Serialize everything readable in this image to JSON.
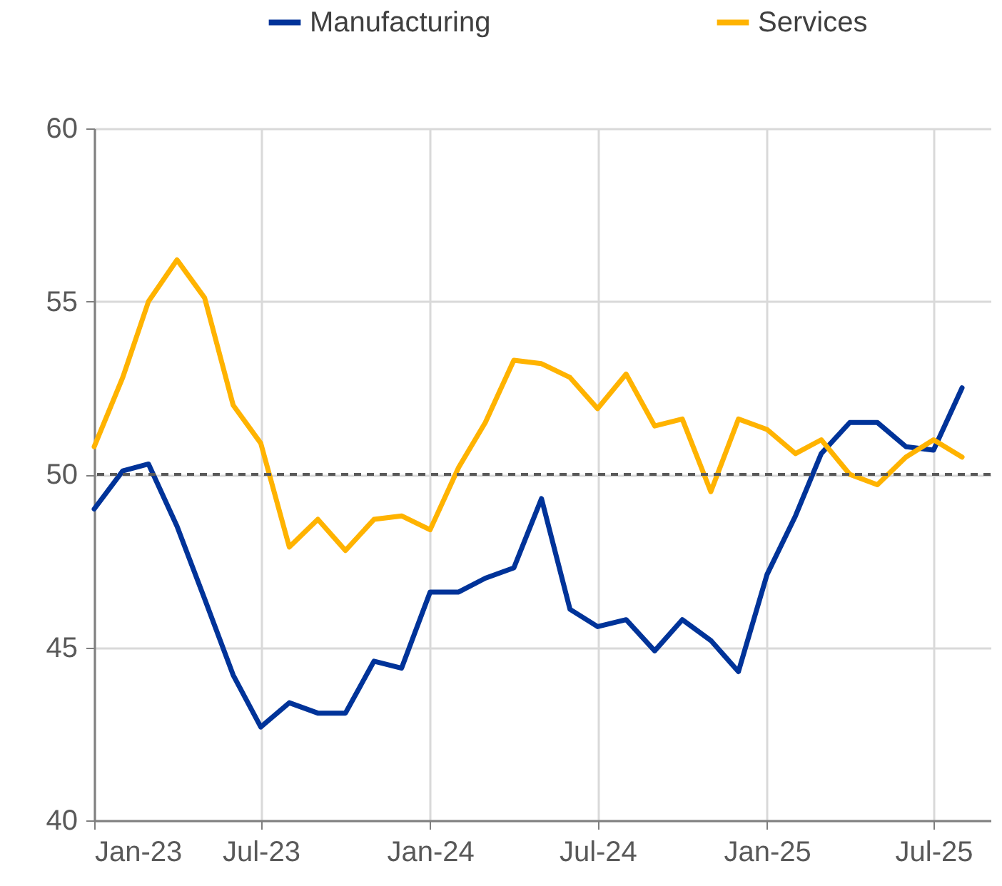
{
  "chart_data": {
    "type": "line",
    "x": [
      "2023-01",
      "2023-02",
      "2023-03",
      "2023-04",
      "2023-05",
      "2023-06",
      "2023-07",
      "2023-08",
      "2023-09",
      "2023-10",
      "2023-11",
      "2023-12",
      "2024-01",
      "2024-02",
      "2024-03",
      "2024-04",
      "2024-05",
      "2024-06",
      "2024-07",
      "2024-08",
      "2024-09",
      "2024-10",
      "2024-11",
      "2024-12",
      "2025-01",
      "2025-02",
      "2025-03",
      "2025-04",
      "2025-05",
      "2025-06",
      "2025-07",
      "2025-08"
    ],
    "series": [
      {
        "name": "Manufacturing",
        "color": "#003399",
        "values": [
          49.0,
          50.1,
          50.3,
          48.5,
          46.4,
          44.2,
          42.7,
          43.4,
          43.1,
          43.1,
          44.6,
          44.4,
          46.6,
          46.6,
          47.0,
          47.3,
          49.3,
          46.1,
          45.6,
          45.8,
          44.9,
          45.8,
          45.2,
          44.3,
          47.1,
          48.8,
          50.6,
          51.5,
          51.5,
          50.8,
          50.7,
          52.5
        ]
      },
      {
        "name": "Services",
        "color": "#ffb300",
        "values": [
          50.8,
          52.8,
          55.0,
          56.2,
          55.1,
          52.0,
          50.9,
          47.9,
          48.7,
          47.8,
          48.7,
          48.8,
          48.4,
          50.2,
          51.5,
          53.3,
          53.2,
          52.8,
          51.9,
          52.9,
          51.4,
          51.6,
          49.5,
          51.6,
          51.3,
          50.6,
          51.0,
          50.0,
          49.7,
          50.5,
          51.0,
          50.5
        ]
      }
    ],
    "xlim": [
      "2023-01",
      "2025-09"
    ],
    "xticks": [
      {
        "value": "2023-01",
        "label": "Jan-23"
      },
      {
        "value": "2023-07",
        "label": "Jul-23"
      },
      {
        "value": "2024-01",
        "label": "Jan-24"
      },
      {
        "value": "2024-07",
        "label": "Jul-24"
      },
      {
        "value": "2025-01",
        "label": "Jan-25"
      },
      {
        "value": "2025-07",
        "label": "Jul-25"
      }
    ],
    "ylim": [
      40,
      60
    ],
    "yticks": [
      40,
      45,
      50,
      55,
      60
    ],
    "ref_lines": [
      {
        "axis": "y",
        "value": 50,
        "color": "#595959",
        "line_style": "dashed"
      }
    ],
    "grid": true,
    "legend": "top"
  }
}
